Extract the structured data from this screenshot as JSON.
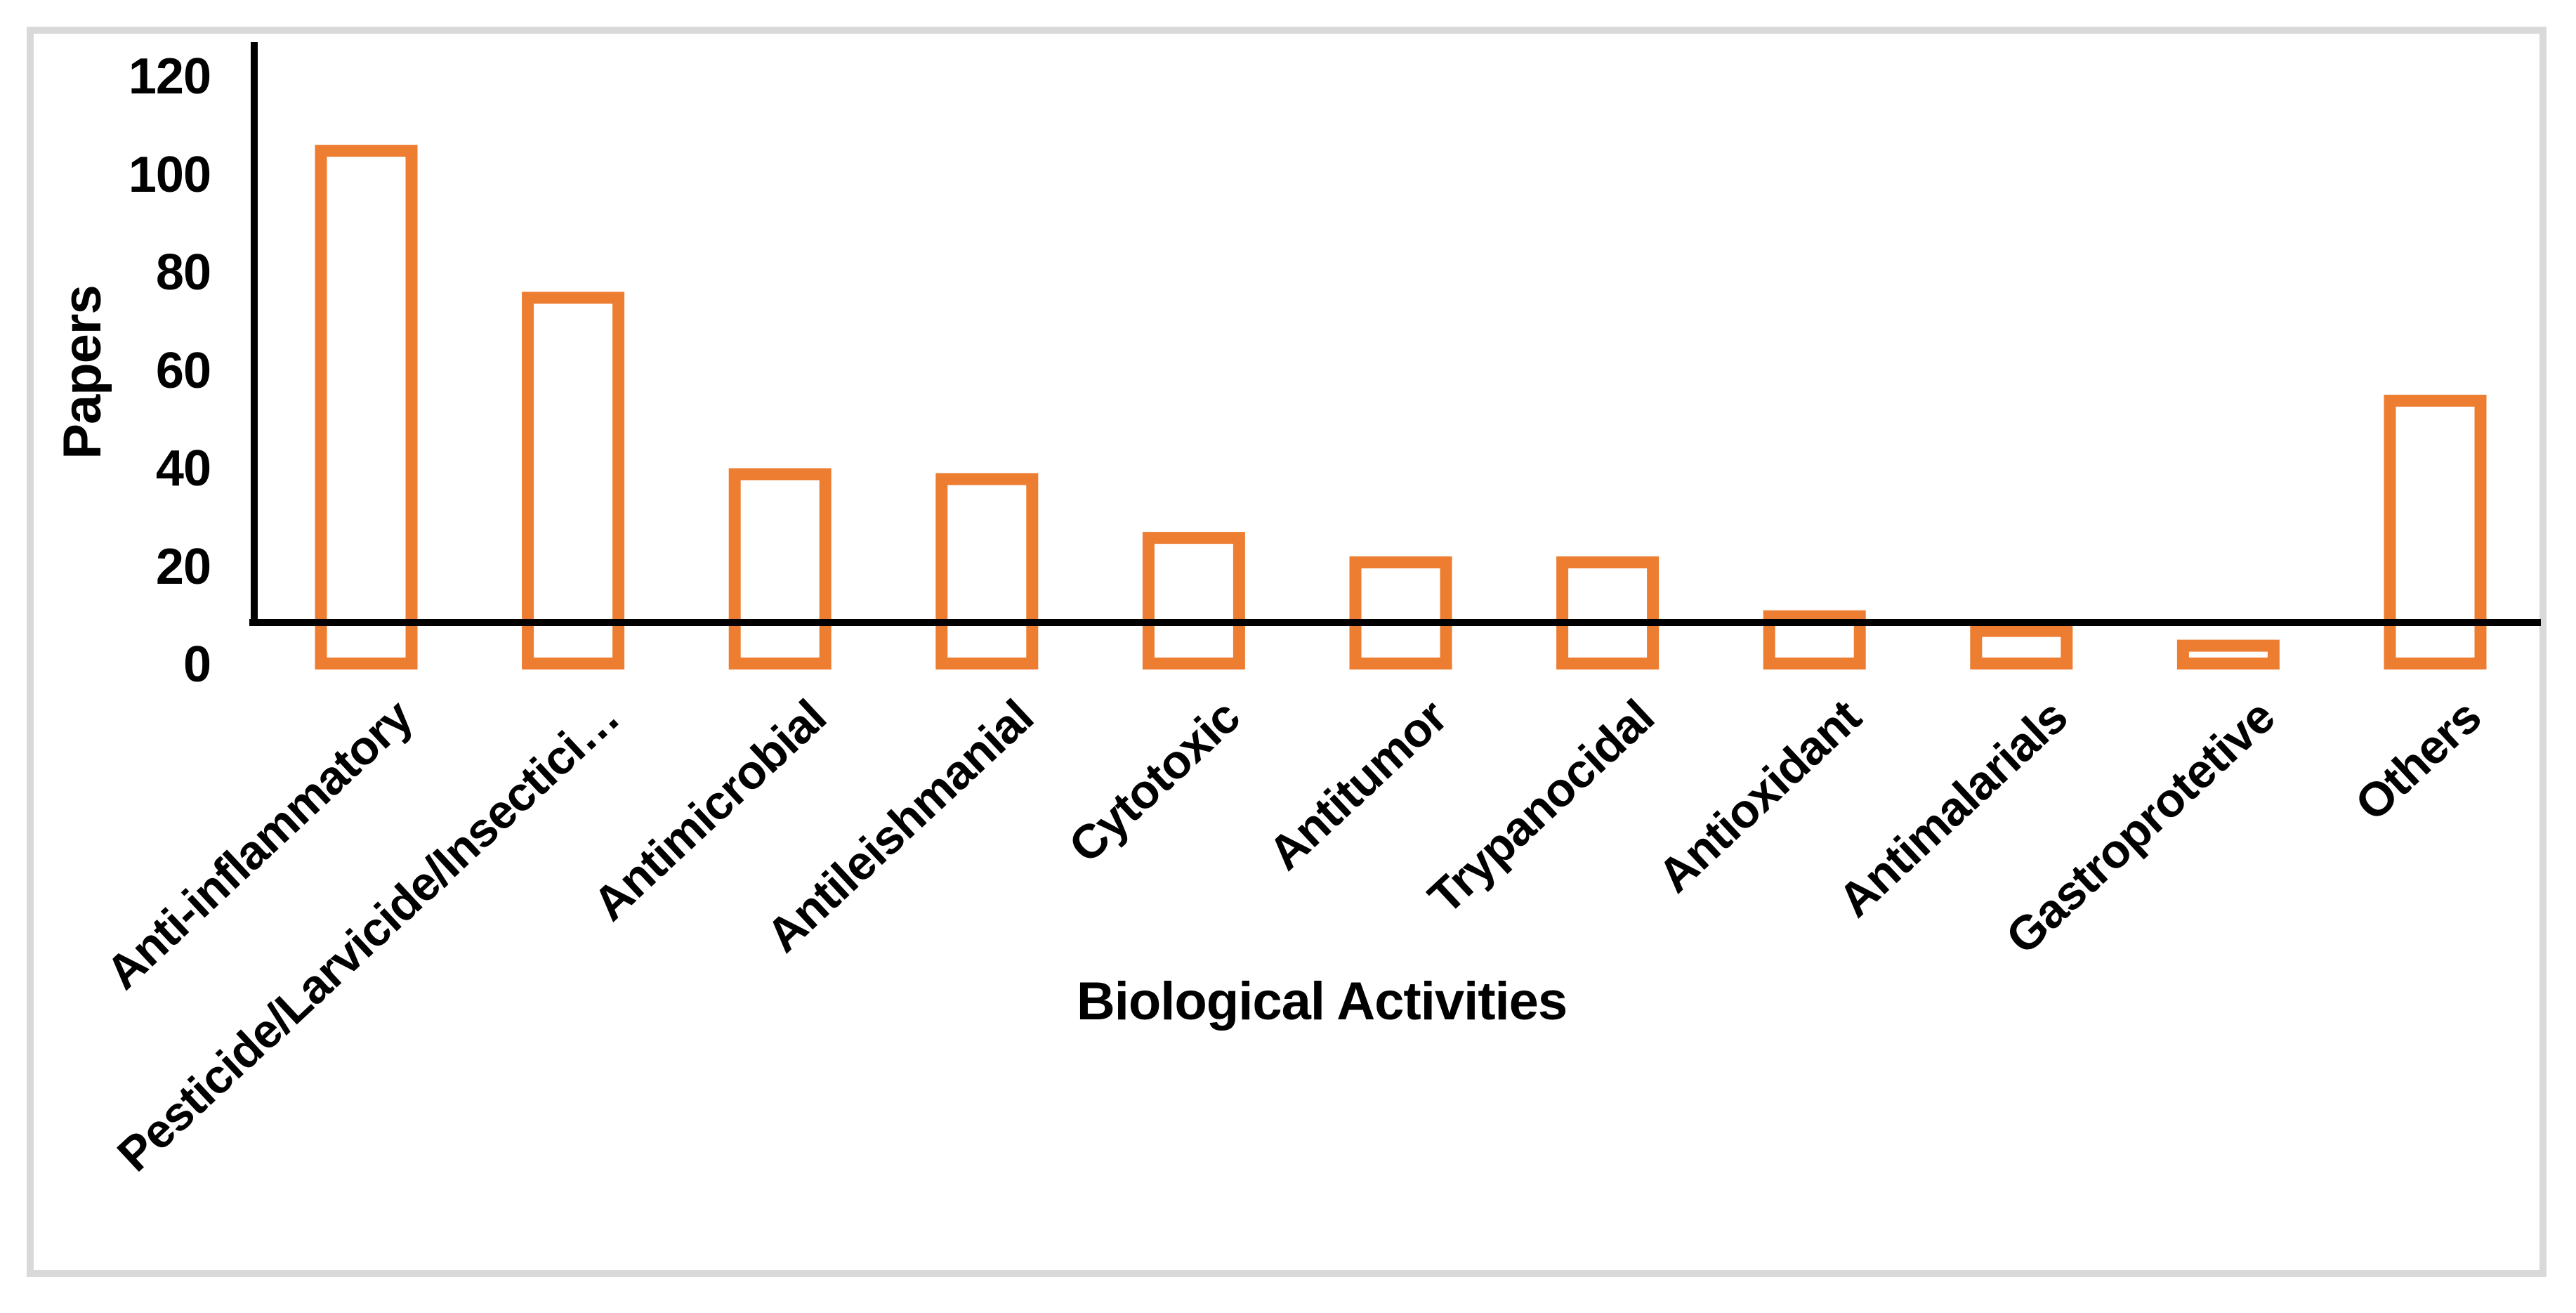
{
  "chart_data": {
    "type": "bar",
    "title": "",
    "xlabel": "Biological Activities",
    "ylabel": "Papers",
    "categories": [
      "Anti-inflammatory",
      "Pesticide/Larvicide/Insectici…",
      "Antimicrobial",
      "Antileishmanial",
      "Cytotoxic",
      "Antitumor",
      "Trypanocidal",
      "Antioxidant",
      "Antimalarials",
      "Gastroprotetive",
      "Others"
    ],
    "values": [
      105,
      75,
      39,
      38,
      26,
      21,
      21,
      10,
      7,
      4,
      54
    ],
    "yticks": [
      0,
      20,
      40,
      60,
      80,
      100,
      120
    ],
    "ylim": [
      0,
      127
    ],
    "grid": false,
    "legend_position": "none",
    "bar_fill": "#FFFFFF",
    "bar_border_color": "#ED7D31",
    "axis_color": "#000000",
    "text_color": "#000000",
    "frame_border_color": "#D9D9D9"
  }
}
